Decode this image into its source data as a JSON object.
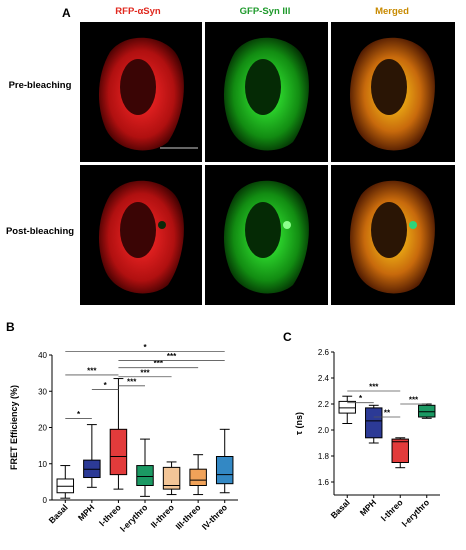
{
  "panel_a": {
    "letter": "A",
    "columns": [
      "RFP-αSyn",
      "GFP-Syn III",
      "Merged"
    ],
    "rows": [
      "Pre-bleaching",
      "Post-bleaching"
    ]
  },
  "chart_data": [
    {
      "panel": "B",
      "type": "box",
      "ylabel": "FRET Efficiency (%)",
      "ylim": [
        0,
        40
      ],
      "yticks": [
        0,
        10,
        20,
        30,
        40
      ],
      "categories": [
        "Basal",
        "MPH",
        "l-threo",
        "l-erythro",
        "II-threo",
        "III-threo",
        "IV-threo"
      ],
      "colors": [
        "#ffffff",
        "#2c3a96",
        "#e23b3b",
        "#1b9963",
        "#f3c597",
        "#f0a259",
        "#3388c4"
      ],
      "boxes": [
        {
          "min": 0.5,
          "q1": 2.0,
          "median": 3.8,
          "q3": 5.8,
          "max": 9.5
        },
        {
          "min": 3.5,
          "q1": 6.2,
          "median": 8.5,
          "q3": 11.0,
          "max": 20.8
        },
        {
          "min": 3.0,
          "q1": 7.0,
          "median": 12.0,
          "q3": 19.5,
          "max": 33.5
        },
        {
          "min": 1.0,
          "q1": 4.0,
          "median": 6.5,
          "q3": 9.5,
          "max": 16.8
        },
        {
          "min": 1.5,
          "q1": 3.0,
          "median": 4.0,
          "q3": 9.0,
          "max": 10.5
        },
        {
          "min": 1.5,
          "q1": 4.0,
          "median": 5.5,
          "q3": 8.5,
          "max": 12.5
        },
        {
          "min": 2.0,
          "q1": 4.5,
          "median": 7.0,
          "q3": 12.0,
          "max": 19.5
        }
      ],
      "significance": [
        {
          "from": 0,
          "to": 1,
          "y": 22.5,
          "label": "*"
        },
        {
          "from": 1,
          "to": 2,
          "y": 30.5,
          "label": "*"
        },
        {
          "from": 2,
          "to": 3,
          "y": 31.5,
          "label": "***"
        },
        {
          "from": 2,
          "to": 4,
          "y": 34.0,
          "label": "***"
        },
        {
          "from": 2,
          "to": 5,
          "y": 36.5,
          "label": "***"
        },
        {
          "from": 0,
          "to": 2,
          "y": 34.5,
          "label": "***"
        },
        {
          "from": 2,
          "to": 6,
          "y": 38.5,
          "label": "***"
        },
        {
          "from": 0,
          "to": 6,
          "y": 41.0,
          "label": "*"
        }
      ]
    },
    {
      "panel": "C",
      "type": "box",
      "ylabel": "τ (ns)",
      "ylim": [
        1.5,
        2.6
      ],
      "yticks": [
        1.6,
        1.8,
        2.0,
        2.2,
        2.4,
        2.6
      ],
      "categories": [
        "Basal",
        "MPH",
        "l-threo",
        "l-erythro"
      ],
      "colors": [
        "#ffffff",
        "#2c3a96",
        "#e23b3b",
        "#1b9963"
      ],
      "boxes": [
        {
          "min": 2.05,
          "q1": 2.13,
          "median": 2.17,
          "q3": 2.22,
          "max": 2.26
        },
        {
          "min": 1.9,
          "q1": 1.94,
          "median": 2.07,
          "q3": 2.17,
          "max": 2.19
        },
        {
          "min": 1.71,
          "q1": 1.75,
          "median": 1.91,
          "q3": 1.93,
          "max": 1.94
        },
        {
          "min": 2.09,
          "q1": 2.1,
          "median": 2.14,
          "q3": 2.19,
          "max": 2.2
        }
      ],
      "significance": [
        {
          "from": 0,
          "to": 1,
          "y": 2.21,
          "label": "*"
        },
        {
          "from": 0,
          "to": 2,
          "y": 2.3,
          "label": "***"
        },
        {
          "from": 1,
          "to": 2,
          "y": 2.1,
          "label": "**"
        },
        {
          "from": 2,
          "to": 3,
          "y": 2.2,
          "label": "***"
        }
      ]
    }
  ],
  "letters": {
    "b": "B",
    "c": "C"
  }
}
